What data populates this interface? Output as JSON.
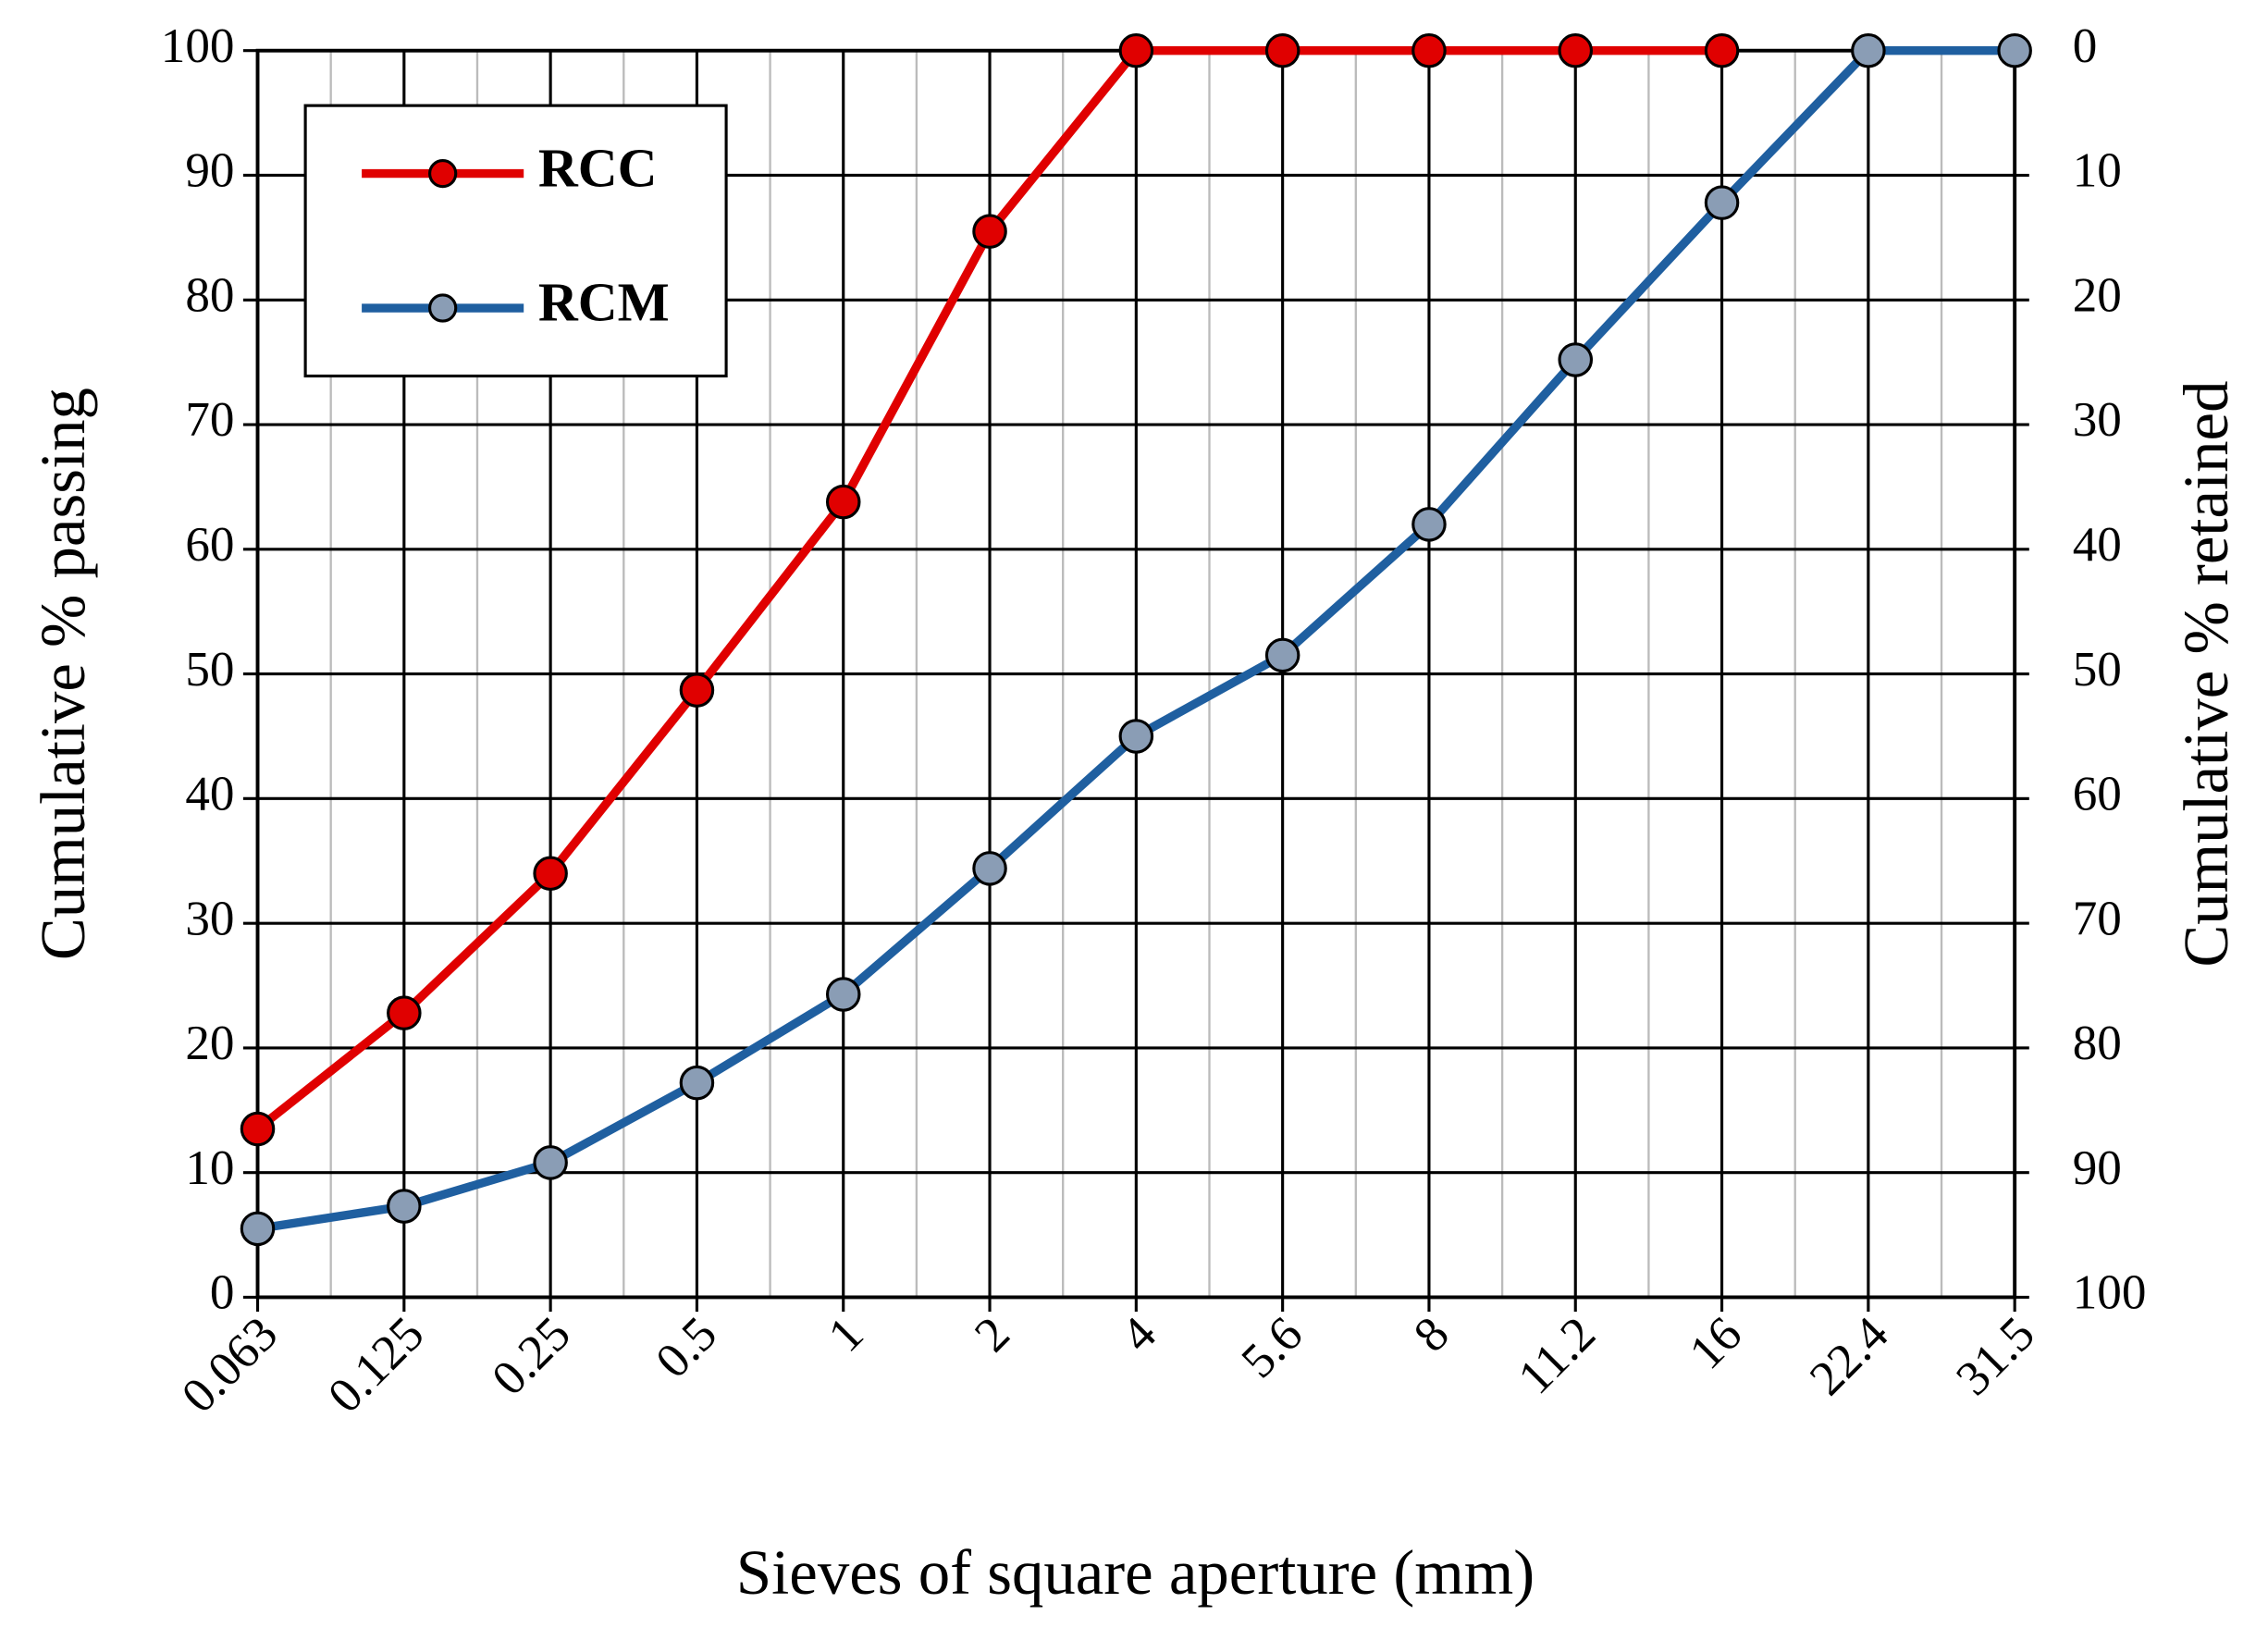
{
  "chart_data": {
    "type": "line",
    "x_label": "Sieves of square aperture (mm)",
    "y_label": "Cumulative % passing",
    "y2_label": "Cumulative % retained",
    "categories": [
      "0.063",
      "0.125",
      "0.25",
      "0.5",
      "1",
      "2",
      "4",
      "5.6",
      "8",
      "11.2",
      "16",
      "22.4",
      "31.5"
    ],
    "series": [
      {
        "name": "RCC",
        "color": "#e00000",
        "values": [
          13.5,
          22.8,
          34,
          48.7,
          63.8,
          85.5,
          100,
          100,
          100,
          100,
          100,
          null,
          null
        ]
      },
      {
        "name": "RCM",
        "color": "#1f5fa0",
        "values": [
          5.5,
          7.3,
          10.8,
          17.2,
          24.3,
          34.4,
          45,
          51.5,
          62,
          75.2,
          87.8,
          100,
          100
        ]
      }
    ],
    "ylim": [
      0,
      100
    ],
    "yticks": [
      0,
      10,
      20,
      30,
      40,
      50,
      60,
      70,
      80,
      90,
      100
    ],
    "y2lim": [
      100,
      0
    ],
    "y2ticks": [
      0,
      10,
      20,
      30,
      40,
      50,
      60,
      70,
      80,
      90,
      100
    ],
    "grid": true,
    "legend": "upper left"
  }
}
